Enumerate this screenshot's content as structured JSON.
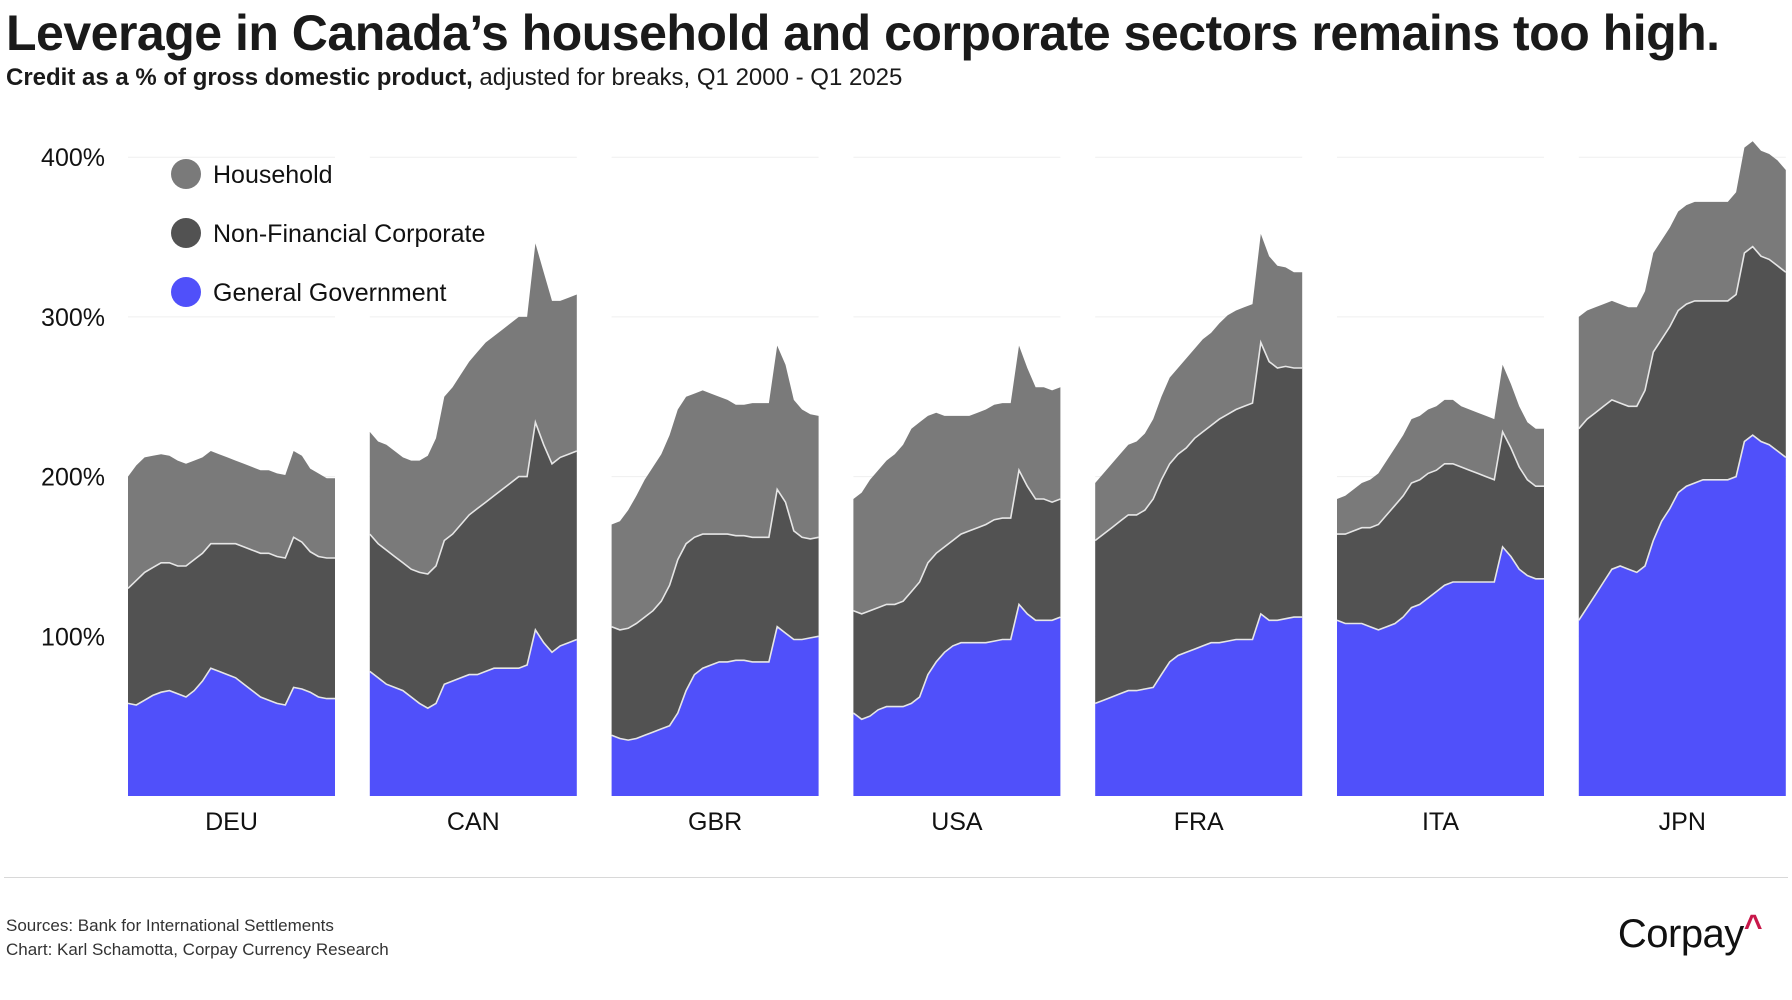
{
  "header": {
    "title": "Leverage in Canada’s household and corporate sectors remains too high.",
    "subtitle_bold": "Credit as a % of gross domestic product,",
    "subtitle_rest": " adjusted for breaks, Q1 2000 - Q1 2025"
  },
  "footer": {
    "sources": "Sources: Bank for International Settlements",
    "credit": "Chart: Karl Schamotta, Corpay Currency Research",
    "logo_text": "Corpay",
    "logo_mark": "^"
  },
  "colors": {
    "household": "#7a7a7a",
    "corporate": "#525252",
    "government": "#5050fa",
    "boundary": "#e6e6e6",
    "grid": "#efefef",
    "logo_accent": "#c8184a"
  },
  "chart_data": {
    "type": "area",
    "stacked": true,
    "faceted_by": "country",
    "title": "Leverage in Canada’s household and corporate sectors remains too high.",
    "subtitle": "Credit as a % of gross domestic product, adjusted for breaks, Q1 2000 - Q1 2025",
    "xlabel": "",
    "ylabel": "",
    "ylim": [
      0,
      420
    ],
    "yticks": [
      100,
      200,
      300,
      400
    ],
    "ytick_labels": [
      "100%",
      "200%",
      "300%",
      "400%"
    ],
    "grid": true,
    "legend": {
      "placement": "top-left",
      "entries": [
        "Household",
        "Non-Financial Corporate",
        "General Government"
      ]
    },
    "x": [
      2000,
      2001,
      2002,
      2003,
      2004,
      2005,
      2006,
      2007,
      2008,
      2009,
      2010,
      2011,
      2012,
      2013,
      2014,
      2015,
      2016,
      2017,
      2018,
      2019,
      2020,
      2021,
      2022,
      2023,
      2024,
      2025
    ],
    "facets": [
      {
        "country": "DEU",
        "series": [
          {
            "name": "General Government",
            "values": [
              58,
              57,
              60,
              63,
              65,
              66,
              64,
              62,
              66,
              72,
              80,
              78,
              76,
              74,
              70,
              66,
              62,
              60,
              58,
              57,
              68,
              67,
              65,
              62,
              61,
              61
            ]
          },
          {
            "name": "Non-Financial Corporate",
            "values": [
              72,
              78,
              80,
              80,
              81,
              80,
              80,
              82,
              82,
              80,
              78,
              80,
              82,
              84,
              86,
              88,
              90,
              92,
              92,
              92,
              94,
              92,
              88,
              88,
              88,
              88
            ]
          },
          {
            "name": "Household",
            "values": [
              70,
              72,
              72,
              70,
              68,
              67,
              66,
              64,
              62,
              60,
              58,
              56,
              54,
              52,
              52,
              52,
              52,
              52,
              52,
              52,
              54,
              54,
              52,
              52,
              50,
              50
            ]
          }
        ]
      },
      {
        "country": "CAN",
        "series": [
          {
            "name": "General Government",
            "values": [
              78,
              74,
              70,
              68,
              66,
              62,
              58,
              55,
              58,
              70,
              72,
              74,
              76,
              76,
              78,
              80,
              80,
              80,
              80,
              82,
              104,
              96,
              90,
              94,
              96,
              98
            ]
          },
          {
            "name": "Non-Financial Corporate",
            "values": [
              86,
              84,
              84,
              82,
              80,
              80,
              82,
              84,
              86,
              90,
              92,
              96,
              100,
              104,
              106,
              108,
              112,
              116,
              120,
              118,
              130,
              124,
              118,
              118,
              118,
              118
            ]
          },
          {
            "name": "Household",
            "values": [
              64,
              64,
              66,
              66,
              66,
              68,
              70,
              74,
              80,
              90,
              92,
              94,
              96,
              98,
              100,
              100,
              100,
              100,
              100,
              100,
              112,
              108,
              102,
              98,
              98,
              98
            ]
          }
        ]
      },
      {
        "country": "GBR",
        "series": [
          {
            "name": "General Government",
            "values": [
              38,
              36,
              35,
              36,
              38,
              40,
              42,
              44,
              52,
              66,
              76,
              80,
              82,
              84,
              84,
              85,
              85,
              84,
              84,
              84,
              106,
              102,
              98,
              98,
              99,
              100
            ]
          },
          {
            "name": "Non-Financial Corporate",
            "values": [
              68,
              68,
              70,
              72,
              74,
              76,
              80,
              88,
              96,
              92,
              86,
              84,
              82,
              80,
              80,
              78,
              78,
              78,
              78,
              78,
              86,
              82,
              68,
              64,
              62,
              62
            ]
          },
          {
            "name": "Household",
            "values": [
              64,
              68,
              74,
              80,
              86,
              90,
              92,
              94,
              94,
              92,
              90,
              90,
              88,
              86,
              84,
              82,
              82,
              84,
              84,
              84,
              90,
              86,
              82,
              80,
              78,
              76
            ]
          }
        ]
      },
      {
        "country": "USA",
        "series": [
          {
            "name": "General Government",
            "values": [
              52,
              48,
              50,
              54,
              56,
              56,
              56,
              58,
              62,
              76,
              84,
              90,
              94,
              96,
              96,
              96,
              96,
              97,
              98,
              98,
              120,
              114,
              110,
              110,
              110,
              112
            ]
          },
          {
            "name": "Non-Financial Corporate",
            "values": [
              64,
              66,
              66,
              64,
              64,
              64,
              66,
              70,
              72,
              70,
              68,
              66,
              66,
              68,
              70,
              72,
              74,
              76,
              76,
              76,
              84,
              80,
              76,
              76,
              74,
              74
            ]
          },
          {
            "name": "Household",
            "values": [
              70,
              76,
              82,
              86,
              90,
              94,
              98,
              102,
              100,
              92,
              88,
              82,
              78,
              74,
              72,
              72,
              72,
              72,
              72,
              72,
              78,
              74,
              70,
              70,
              70,
              70
            ]
          }
        ]
      },
      {
        "country": "FRA",
        "series": [
          {
            "name": "General Government",
            "values": [
              58,
              60,
              62,
              64,
              66,
              66,
              67,
              68,
              76,
              84,
              88,
              90,
              92,
              94,
              96,
              96,
              97,
              98,
              98,
              98,
              114,
              110,
              110,
              111,
              112,
              112
            ]
          },
          {
            "name": "Non-Financial Corporate",
            "values": [
              102,
              104,
              106,
              108,
              110,
              110,
              112,
              118,
              122,
              124,
              126,
              128,
              132,
              134,
              136,
              140,
              142,
              144,
              146,
              148,
              170,
              162,
              158,
              158,
              156,
              156
            ]
          },
          {
            "name": "Household",
            "values": [
              36,
              38,
              40,
              42,
              44,
              46,
              48,
              50,
              52,
              54,
              54,
              56,
              56,
              58,
              58,
              60,
              62,
              62,
              62,
              62,
              68,
              66,
              64,
              62,
              60,
              60
            ]
          }
        ]
      },
      {
        "country": "ITA",
        "series": [
          {
            "name": "General Government",
            "values": [
              110,
              108,
              108,
              108,
              106,
              104,
              106,
              108,
              112,
              118,
              120,
              124,
              128,
              132,
              134,
              134,
              134,
              134,
              134,
              134,
              156,
              150,
              142,
              138,
              136,
              136
            ]
          },
          {
            "name": "Non-Financial Corporate",
            "values": [
              54,
              56,
              58,
              60,
              62,
              66,
              70,
              74,
              76,
              78,
              78,
              78,
              76,
              76,
              74,
              72,
              70,
              68,
              66,
              64,
              72,
              68,
              64,
              60,
              58,
              58
            ]
          },
          {
            "name": "Household",
            "values": [
              22,
              24,
              26,
              28,
              30,
              32,
              34,
              36,
              38,
              40,
              40,
              40,
              40,
              40,
              40,
              38,
              38,
              38,
              38,
              38,
              42,
              40,
              38,
              36,
              36,
              36
            ]
          }
        ]
      },
      {
        "country": "JPN",
        "series": [
          {
            "name": "General Government",
            "values": [
              110,
              118,
              126,
              134,
              142,
              144,
              142,
              140,
              144,
              160,
              172,
              180,
              190,
              194,
              196,
              198,
              198,
              198,
              198,
              200,
              222,
              226,
              222,
              220,
              216,
              212
            ]
          },
          {
            "name": "Non-Financial Corporate",
            "values": [
              120,
              118,
              114,
              110,
              106,
              102,
              102,
              104,
              110,
              118,
              114,
              114,
              114,
              114,
              114,
              112,
              112,
              112,
              112,
              114,
              118,
              118,
              116,
              116,
              116,
              116
            ]
          },
          {
            "name": "Household",
            "values": [
              70,
              68,
              66,
              64,
              62,
              62,
              62,
              62,
              62,
              62,
              62,
              62,
              62,
              62,
              62,
              62,
              62,
              62,
              62,
              64,
              66,
              66,
              66,
              66,
              66,
              64
            ]
          }
        ]
      }
    ]
  }
}
